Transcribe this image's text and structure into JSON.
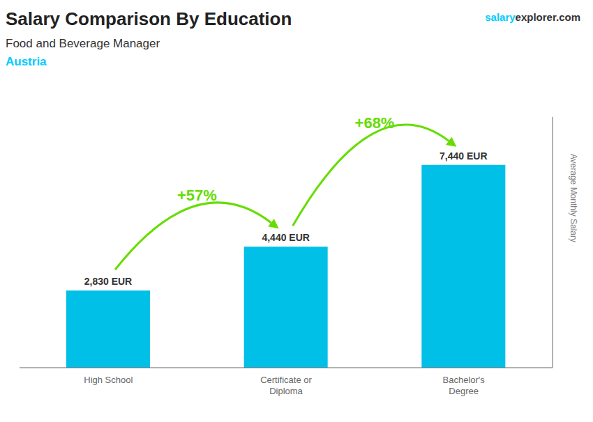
{
  "chart_data": {
    "type": "bar",
    "title": "Salary Comparison By Education",
    "subtitle": "Food and Beverage Manager",
    "categories": [
      "High School",
      "Certificate or\nDiploma",
      "Bachelor's\nDegree"
    ],
    "values": [
      2830,
      4440,
      7440
    ],
    "value_labels": [
      "2,830 EUR",
      "4,440 EUR",
      "7,440 EUR"
    ],
    "data_labels": true,
    "color": "#00c0e8",
    "ylabel": "Average Monthly Salary",
    "ylim": [
      0,
      9200
    ],
    "grid": false,
    "tick_labels": "x",
    "annotations": [
      {
        "kind": "country",
        "text": "Austria",
        "color": "#00ccff"
      },
      {
        "kind": "website",
        "text": "salary",
        "color": "#00ccff"
      },
      {
        "kind": "website",
        "text": "explorer.com"
      },
      {
        "kind": "arrow",
        "text": "+57%",
        "from": "High School",
        "to": "Certificate or\nDiploma",
        "color": "#66dd00"
      },
      {
        "kind": "arrow",
        "text": "+68%",
        "from": "Certificate or\nDiploma",
        "to": "Bachelor's\nDegree",
        "color": "#66dd00"
      }
    ]
  }
}
